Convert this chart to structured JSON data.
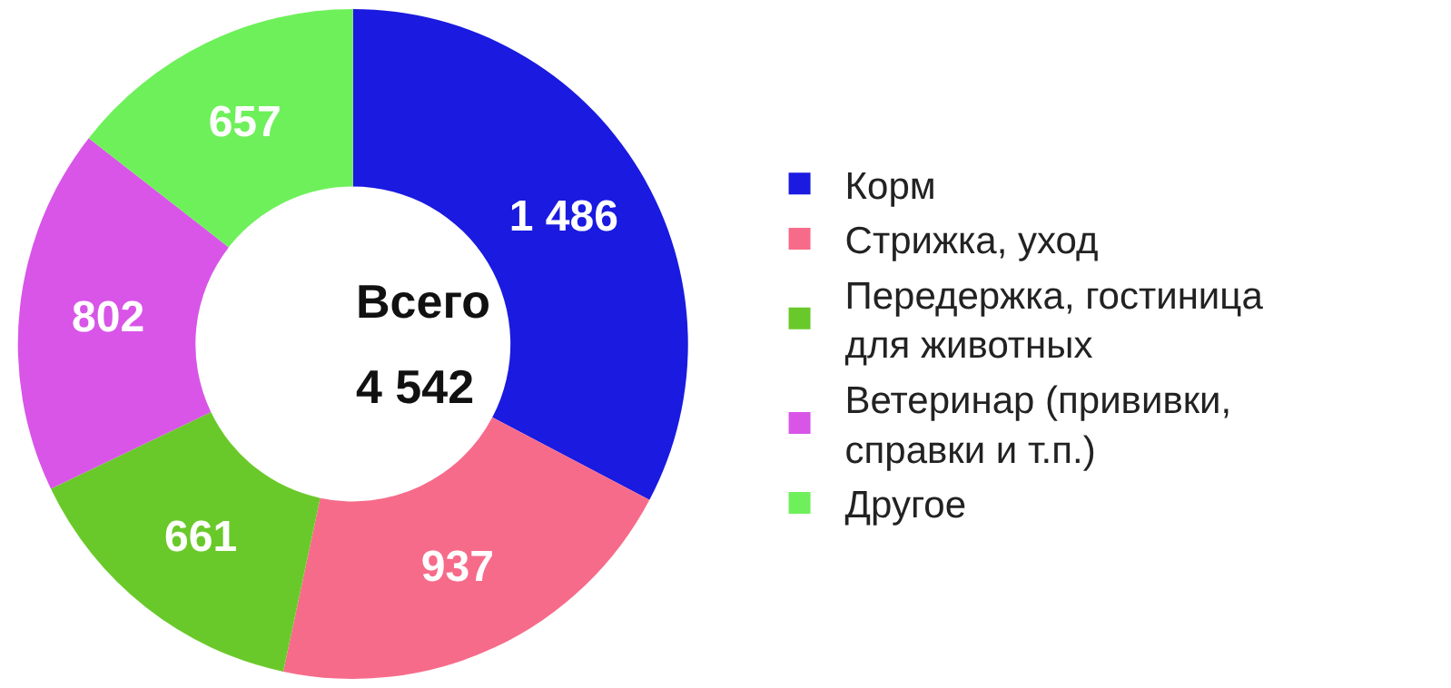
{
  "chart_data": {
    "type": "donut",
    "categories": [
      "Корм",
      "Стрижка, уход",
      "Передержка, гостиница для животных",
      "Ветеринар (прививки, справки и т.п.)",
      "Другое"
    ],
    "values": [
      1486,
      937,
      661,
      802,
      657
    ],
    "value_labels": [
      "1 486",
      "937",
      "661",
      "802",
      "657"
    ],
    "colors": [
      "#1a1ae0",
      "#f76b8a",
      "#6ac92a",
      "#d855e8",
      "#6ef05a"
    ],
    "annotations": [
      "Всего",
      "4 542"
    ],
    "legend": "right"
  }
}
